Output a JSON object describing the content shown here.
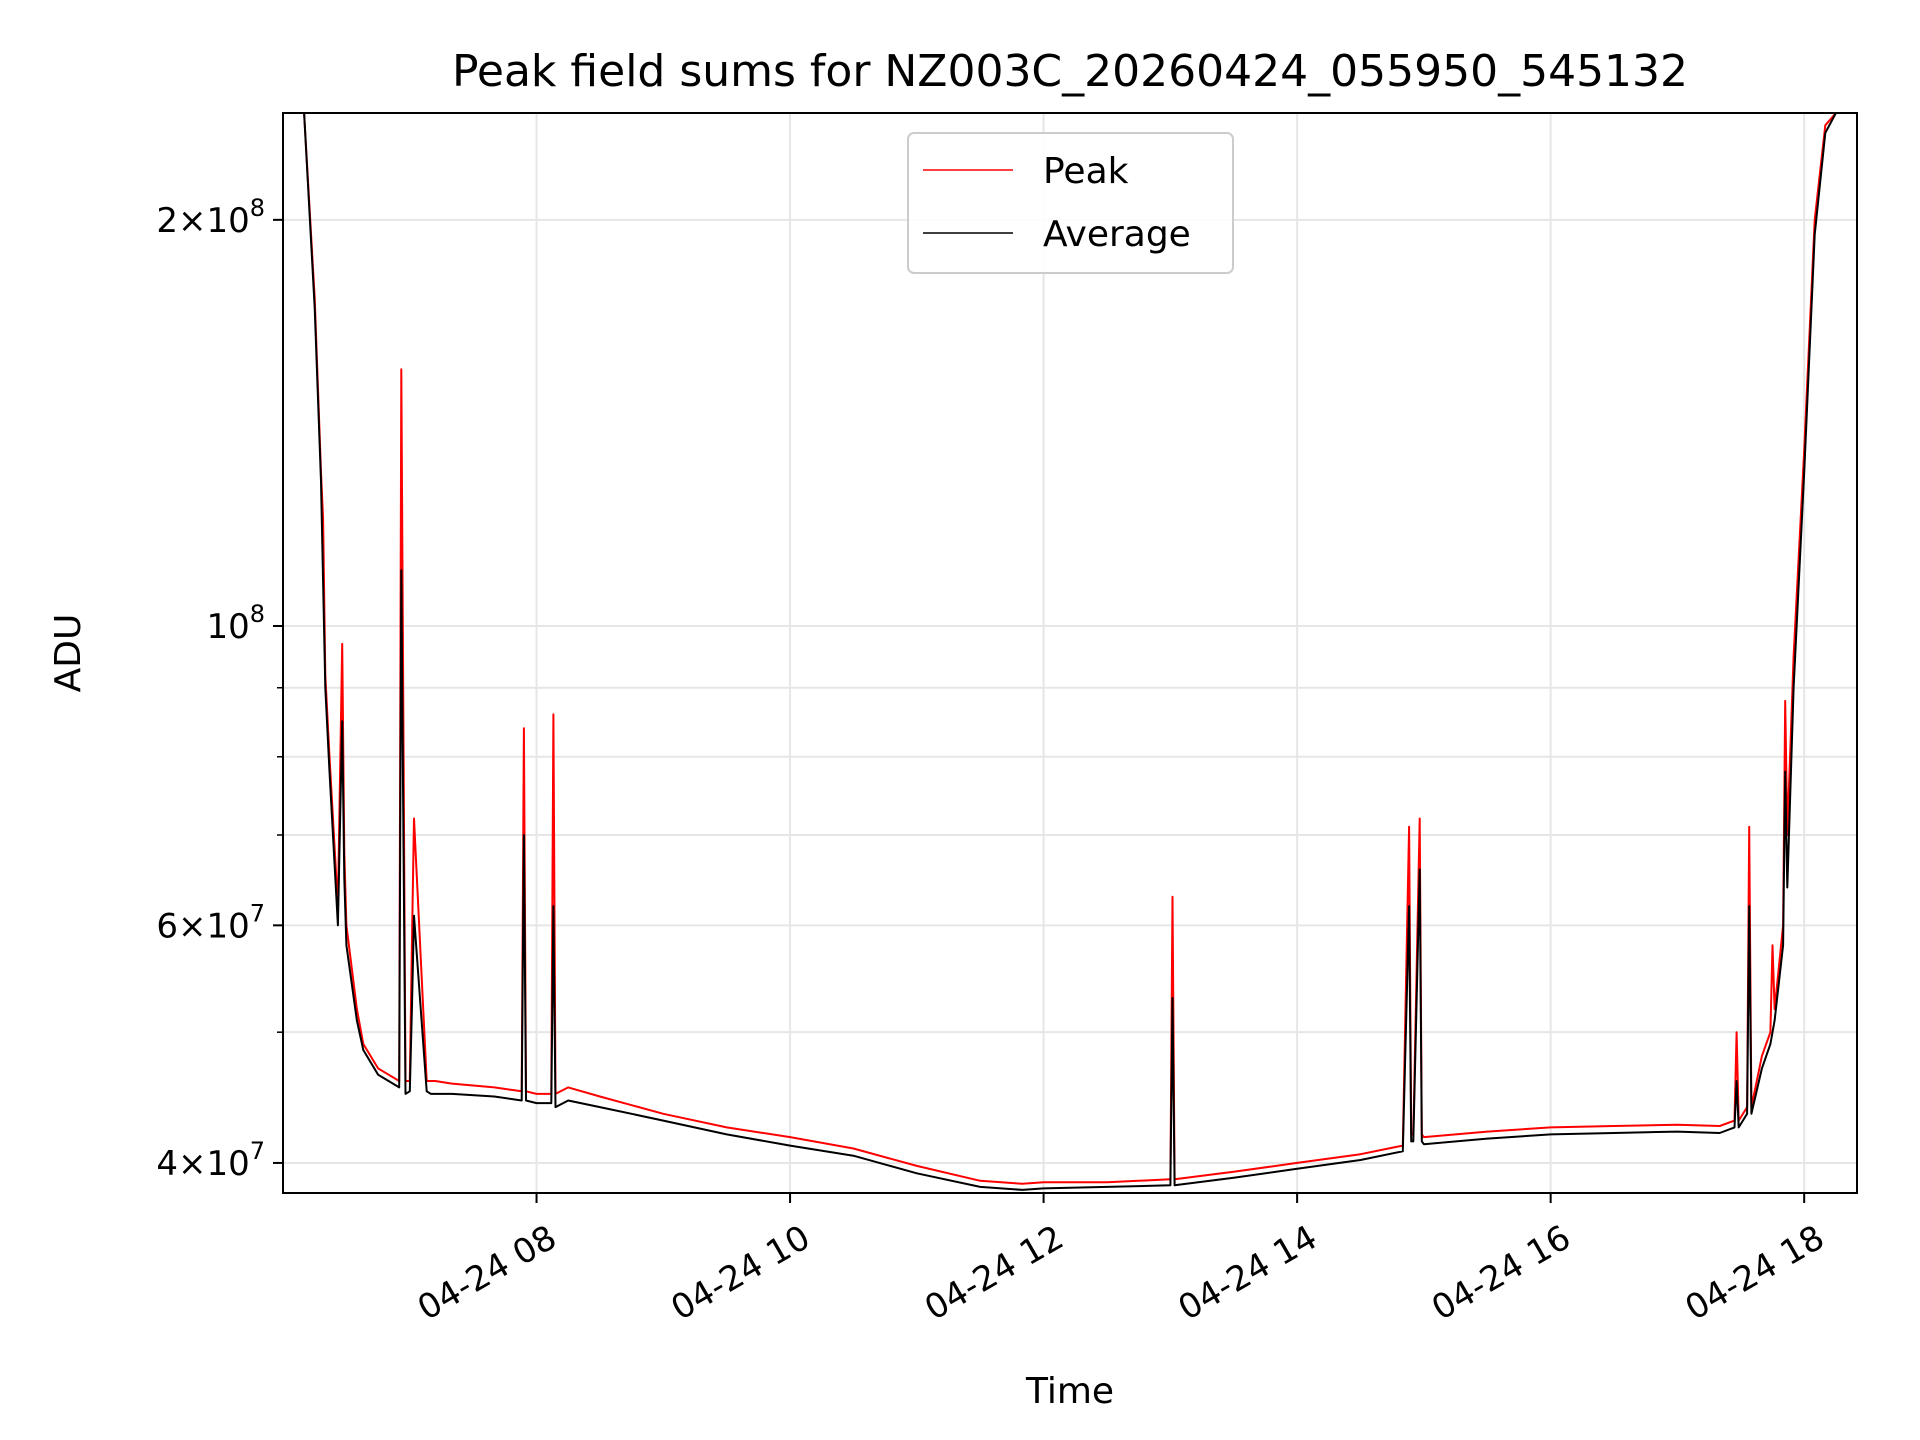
{
  "chart_data": {
    "type": "line",
    "title": "Peak field sums for NZ003C_20260424_055950_545132",
    "xlabel": "Time",
    "ylabel": "ADU",
    "yscale": "log",
    "grid": true,
    "legend_position": "top-center",
    "xlim": [
      "2026-04-24 06:00",
      "2026-04-24 18:25"
    ],
    "ylim": [
      38000000,
      240000000
    ],
    "x_ticks": [
      {
        "value": "2026-04-24 08:00",
        "label": "04-24 08"
      },
      {
        "value": "2026-04-24 10:00",
        "label": "04-24 10"
      },
      {
        "value": "2026-04-24 12:00",
        "label": "04-24 12"
      },
      {
        "value": "2026-04-24 14:00",
        "label": "04-24 14"
      },
      {
        "value": "2026-04-24 16:00",
        "label": "04-24 16"
      },
      {
        "value": "2026-04-24 18:00",
        "label": "04-24 18"
      }
    ],
    "y_ticks": [
      {
        "value": 40000000,
        "base": "4",
        "exp": "7"
      },
      {
        "value": 60000000,
        "base": "6",
        "exp": "7"
      },
      {
        "value": 100000000,
        "base": "",
        "exp": "8"
      },
      {
        "value": 200000000,
        "base": "2",
        "exp": "8"
      }
    ],
    "series": [
      {
        "name": "Peak",
        "color": "#ff0000",
        "x": [
          "06:10",
          "06:15",
          "06:18",
          "06:19",
          "06:20",
          "06:22",
          "06:26",
          "06:28",
          "06:29",
          "06:30",
          "06:35",
          "06:38",
          "06:45",
          "06:50",
          "06:55",
          "06:56",
          "06:58",
          "07:00",
          "07:01",
          "07:02",
          "07:08",
          "07:10",
          "07:11",
          "07:12",
          "07:20",
          "07:40",
          "07:53",
          "07:54",
          "07:55",
          "08:00",
          "08:07",
          "08:08",
          "08:09",
          "08:15",
          "08:30",
          "09:00",
          "09:30",
          "10:00",
          "10:30",
          "11:00",
          "11:30",
          "11:50",
          "12:00",
          "12:30",
          "13:00",
          "13:01",
          "13:02",
          "13:30",
          "14:00",
          "14:30",
          "14:50",
          "14:53",
          "14:54",
          "14:55",
          "14:58",
          "14:59",
          "15:00",
          "15:30",
          "16:00",
          "16:30",
          "17:00",
          "17:20",
          "17:27",
          "17:28",
          "17:29",
          "17:33",
          "17:34",
          "17:35",
          "17:40",
          "17:44",
          "17:45",
          "17:46",
          "17:50",
          "17:51",
          "17:52",
          "17:55",
          "18:00",
          "18:05",
          "18:10",
          "18:15"
        ],
        "y": [
          240000000,
          175000000,
          130000000,
          120000000,
          92000000,
          80000000,
          62000000,
          97000000,
          68000000,
          60000000,
          52000000,
          49000000,
          47000000,
          46500000,
          46000000,
          155000000,
          46000000,
          46000000,
          58000000,
          72000000,
          46000000,
          46000000,
          46000000,
          46000000,
          45800000,
          45500000,
          45200000,
          84000000,
          45200000,
          45000000,
          45000000,
          86000000,
          45000000,
          45500000,
          44800000,
          43500000,
          42500000,
          41800000,
          41000000,
          39800000,
          38800000,
          38600000,
          38700000,
          38700000,
          38900000,
          63000000,
          38900000,
          39400000,
          40000000,
          40600000,
          41200000,
          71000000,
          42000000,
          42000000,
          72000000,
          42000000,
          41800000,
          42200000,
          42500000,
          42600000,
          42700000,
          42600000,
          43000000,
          50000000,
          43000000,
          44000000,
          71000000,
          44000000,
          48000000,
          50000000,
          58000000,
          52000000,
          60000000,
          88000000,
          70000000,
          95000000,
          135000000,
          200000000,
          235000000,
          240000000
        ]
      },
      {
        "name": "Average",
        "color": "#000000",
        "x": [
          "06:10",
          "06:15",
          "06:18",
          "06:20",
          "06:22",
          "06:26",
          "06:28",
          "06:29",
          "06:30",
          "06:35",
          "06:38",
          "06:45",
          "06:50",
          "06:55",
          "06:56",
          "06:58",
          "07:00",
          "07:01",
          "07:02",
          "07:08",
          "07:10",
          "07:20",
          "07:40",
          "07:53",
          "07:54",
          "07:55",
          "08:00",
          "08:07",
          "08:08",
          "08:09",
          "08:15",
          "08:30",
          "09:00",
          "09:30",
          "10:00",
          "10:30",
          "11:00",
          "11:30",
          "11:50",
          "12:00",
          "12:30",
          "13:00",
          "13:01",
          "13:02",
          "13:30",
          "14:00",
          "14:30",
          "14:50",
          "14:53",
          "14:54",
          "14:55",
          "14:58",
          "14:59",
          "15:00",
          "15:30",
          "16:00",
          "16:30",
          "17:00",
          "17:20",
          "17:27",
          "17:28",
          "17:29",
          "17:33",
          "17:34",
          "17:35",
          "17:40",
          "17:44",
          "17:46",
          "17:50",
          "17:51",
          "17:52",
          "17:55",
          "18:00",
          "18:05",
          "18:10",
          "18:15"
        ],
        "y": [
          240000000,
          172000000,
          128000000,
          90000000,
          78000000,
          60000000,
          85000000,
          65000000,
          58000000,
          51000000,
          48500000,
          46500000,
          46000000,
          45500000,
          110000000,
          45000000,
          45200000,
          52000000,
          61000000,
          45200000,
          45000000,
          45000000,
          44800000,
          44500000,
          70000000,
          44500000,
          44300000,
          44300000,
          62000000,
          44000000,
          44500000,
          44000000,
          43000000,
          42000000,
          41200000,
          40500000,
          39300000,
          38400000,
          38200000,
          38300000,
          38400000,
          38500000,
          53000000,
          38500000,
          39000000,
          39600000,
          40200000,
          40800000,
          62000000,
          41500000,
          41500000,
          66000000,
          41500000,
          41300000,
          41700000,
          42000000,
          42100000,
          42200000,
          42100000,
          42500000,
          46000000,
          42500000,
          43500000,
          62000000,
          43500000,
          47000000,
          49000000,
          51000000,
          58000000,
          78000000,
          64000000,
          90000000,
          130000000,
          195000000,
          232000000,
          240000000
        ]
      }
    ]
  }
}
